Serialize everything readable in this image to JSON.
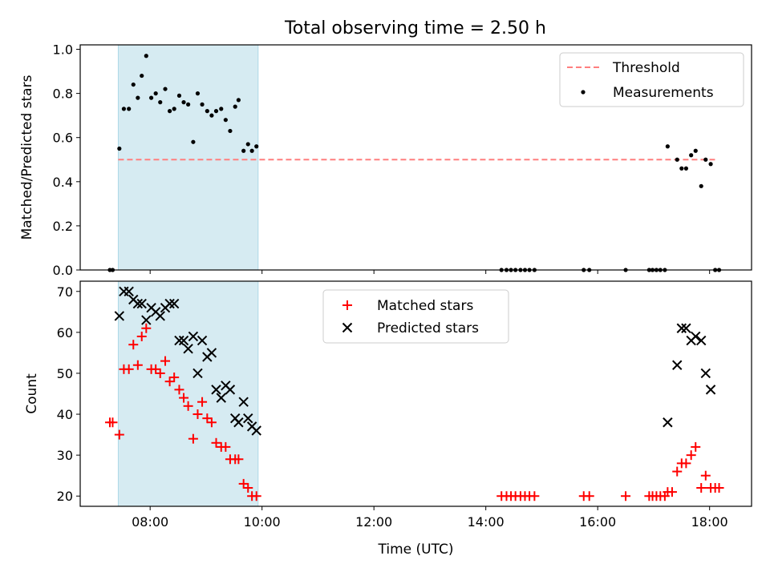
{
  "figure_title": "Total observing time = 2.50 h",
  "colors": {
    "threshold": "#ff7f7f",
    "measurements": "#000000",
    "matched": "#ff0000",
    "predicted": "#000000",
    "shade": "#add8e6"
  },
  "chart_data": [
    {
      "type": "scatter",
      "panel": "top",
      "ylabel": "Matched/Predicted stars",
      "xlim": [
        6.75,
        18.75
      ],
      "ylim": [
        0,
        1.02
      ],
      "yticks": [
        0,
        0.2,
        0.4,
        0.6,
        0.8,
        1.0
      ],
      "ytick_labels": [
        "0.0",
        "0.2",
        "0.4",
        "0.6",
        "0.8",
        "1.0"
      ],
      "xticks": [
        8,
        10,
        12,
        14,
        16,
        18
      ],
      "shaded_span": [
        7.43,
        9.93
      ],
      "legend": {
        "placement": "upper right",
        "entries": [
          "Threshold",
          "Measurements"
        ]
      },
      "threshold": {
        "name": "Threshold",
        "y": 0.5,
        "x_range": [
          7.43,
          18.13
        ]
      },
      "series": [
        {
          "name": "Measurements",
          "x": [
            7.28,
            7.33,
            7.45,
            7.53,
            7.62,
            7.7,
            7.78,
            7.85,
            7.93,
            8.02,
            8.1,
            8.18,
            8.27,
            8.35,
            8.43,
            8.52,
            8.6,
            8.68,
            8.77,
            8.85,
            8.93,
            9.02,
            9.1,
            9.18,
            9.27,
            9.35,
            9.43,
            9.52,
            9.58,
            9.67,
            9.75,
            9.82,
            9.9,
            14.28,
            14.37,
            14.45,
            14.53,
            14.62,
            14.7,
            14.78,
            14.87,
            15.75,
            15.85,
            16.5,
            16.92,
            16.98,
            17.05,
            17.12,
            17.2,
            17.25,
            17.42,
            17.5,
            17.58,
            17.67,
            17.75,
            17.85,
            17.93,
            18.02,
            18.1,
            18.17
          ],
          "y": [
            0.0,
            0.0,
            0.55,
            0.73,
            0.73,
            0.84,
            0.78,
            0.88,
            0.97,
            0.78,
            0.8,
            0.76,
            0.82,
            0.72,
            0.73,
            0.79,
            0.76,
            0.75,
            0.58,
            0.8,
            0.75,
            0.72,
            0.7,
            0.72,
            0.73,
            0.68,
            0.63,
            0.74,
            0.77,
            0.54,
            0.57,
            0.54,
            0.56,
            0.0,
            0.0,
            0.0,
            0.0,
            0.0,
            0.0,
            0.0,
            0.0,
            0.0,
            0.0,
            0.0,
            0.0,
            0.0,
            0.0,
            0.0,
            0.0,
            0.56,
            0.5,
            0.46,
            0.46,
            0.52,
            0.54,
            0.38,
            0.5,
            0.48,
            0.0,
            0.0
          ]
        }
      ]
    },
    {
      "type": "scatter",
      "panel": "bottom",
      "ylabel": "Count",
      "xlabel": "Time (UTC)",
      "xlim": [
        6.75,
        18.75
      ],
      "ylim": [
        17.5,
        72.5
      ],
      "yticks": [
        20,
        30,
        40,
        50,
        60,
        70
      ],
      "ytick_labels": [
        "20",
        "30",
        "40",
        "50",
        "60",
        "70"
      ],
      "xticks": [
        8,
        10,
        12,
        14,
        16,
        18
      ],
      "xtick_labels": [
        "08:00",
        "10:00",
        "12:00",
        "14:00",
        "16:00",
        "18:00"
      ],
      "shaded_span": [
        7.43,
        9.93
      ],
      "legend": {
        "placement": "upper center",
        "entries": [
          "Matched stars",
          "Predicted stars"
        ]
      },
      "series": [
        {
          "name": "Matched stars",
          "marker": "+",
          "x": [
            7.28,
            7.33,
            7.45,
            7.53,
            7.62,
            7.7,
            7.78,
            7.85,
            7.93,
            8.02,
            8.1,
            8.18,
            8.27,
            8.35,
            8.43,
            8.52,
            8.6,
            8.68,
            8.77,
            8.85,
            8.93,
            9.02,
            9.1,
            9.18,
            9.27,
            9.35,
            9.43,
            9.52,
            9.58,
            9.67,
            9.75,
            9.82,
            9.9,
            14.28,
            14.37,
            14.45,
            14.53,
            14.62,
            14.7,
            14.78,
            14.87,
            15.75,
            15.85,
            16.5,
            16.92,
            16.98,
            17.05,
            17.12,
            17.2,
            17.25,
            17.33,
            17.42,
            17.5,
            17.58,
            17.67,
            17.75,
            17.85,
            17.93,
            18.02,
            18.1,
            18.17
          ],
          "y": [
            38,
            38,
            35,
            51,
            51,
            57,
            52,
            59,
            61,
            51,
            51,
            50,
            53,
            48,
            49,
            46,
            44,
            42,
            34,
            40,
            43,
            39,
            38,
            33,
            32,
            32,
            29,
            29,
            29,
            23,
            22,
            20,
            20,
            20,
            20,
            20,
            20,
            20,
            20,
            20,
            20,
            20,
            20,
            20,
            20,
            20,
            20,
            20,
            20,
            21,
            21,
            26,
            28,
            28,
            30,
            32,
            22,
            25,
            22,
            22,
            22
          ]
        },
        {
          "name": "Predicted stars",
          "marker": "x",
          "x": [
            7.45,
            7.53,
            7.62,
            7.7,
            7.78,
            7.85,
            7.93,
            8.02,
            8.1,
            8.18,
            8.27,
            8.35,
            8.43,
            8.52,
            8.6,
            8.68,
            8.77,
            8.85,
            8.93,
            9.02,
            9.1,
            9.18,
            9.27,
            9.35,
            9.43,
            9.52,
            9.58,
            9.67,
            9.75,
            9.82,
            9.9,
            17.25,
            17.42,
            17.5,
            17.58,
            17.67,
            17.75,
            17.85,
            17.93,
            18.02
          ],
          "y": [
            64,
            70,
            70,
            68,
            67,
            67,
            63,
            66,
            65,
            64,
            66,
            67,
            67,
            58,
            58,
            56,
            59,
            50,
            58,
            54,
            55,
            46,
            44,
            47,
            46,
            39,
            38,
            43,
            39,
            37,
            36,
            38,
            52,
            61,
            61,
            58,
            59,
            58,
            50,
            46
          ]
        }
      ]
    }
  ]
}
